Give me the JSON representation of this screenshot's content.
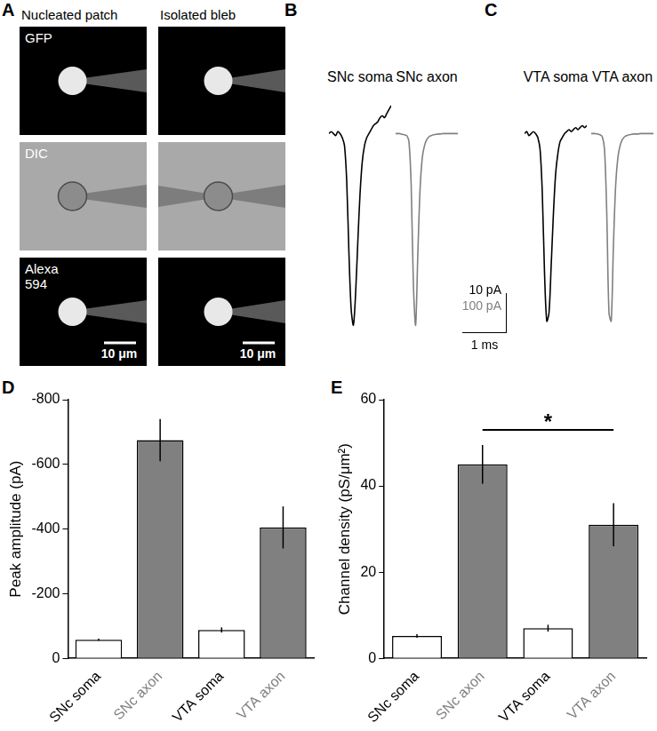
{
  "panel_A": {
    "letter": "A",
    "columns": [
      "Nucleated patch",
      "Isolated bleb"
    ],
    "rows": [
      "GFP",
      "DIC",
      "Alexa 594"
    ],
    "scale_bar_label": "10 μm"
  },
  "chart_data": [
    {
      "panel": "B",
      "type": "line",
      "tick_labels": false,
      "x": [
        0,
        0.05,
        0.1,
        0.15,
        0.2,
        0.25,
        0.3,
        0.35,
        0.4,
        0.45,
        0.5,
        0.55,
        0.6,
        0.65,
        0.7,
        0.75,
        0.8,
        0.85,
        0.9,
        0.95,
        1.0,
        1.05,
        1.1,
        1.15,
        1.2,
        1.25,
        1.3,
        1.35,
        1.4
      ],
      "xlim": [
        0,
        1.4
      ],
      "ylim": [
        -50,
        9
      ],
      "y2lim": [
        -500,
        90
      ],
      "series": [
        {
          "name": "SNc soma",
          "color": "#000000",
          "values": [
            0,
            0.5,
            0,
            -0.5,
            0.5,
            0,
            -1,
            -3,
            -12,
            -30,
            -44,
            -48,
            -40,
            -27,
            -15,
            -7,
            -3,
            -1,
            0,
            1,
            2,
            2.5,
            3,
            4,
            4.5,
            4,
            5,
            6,
            7
          ]
        },
        {
          "name": "SNc axon",
          "color": "#808080",
          "axis": "y2",
          "values": [
            0,
            0,
            0,
            -2,
            -3,
            -5,
            -20,
            -130,
            -380,
            -480,
            -300,
            -140,
            -60,
            -30,
            -15,
            -8,
            -5,
            -3,
            -2,
            -1,
            -1,
            0,
            0,
            0,
            0,
            0,
            0,
            0,
            0
          ]
        }
      ]
    },
    {
      "panel": "C",
      "type": "line",
      "tick_labels": false,
      "x": [
        0,
        0.05,
        0.1,
        0.15,
        0.2,
        0.25,
        0.3,
        0.35,
        0.4,
        0.45,
        0.5,
        0.55,
        0.6,
        0.65,
        0.7,
        0.75,
        0.8,
        0.85,
        0.9,
        0.95,
        1.0,
        1.05,
        1.1,
        1.15,
        1.2,
        1.25,
        1.3,
        1.35,
        1.4
      ],
      "xlim": [
        0,
        1.4
      ],
      "ylim": [
        -50,
        9
      ],
      "y2lim": [
        -500,
        90
      ],
      "series": [
        {
          "name": "VTA soma",
          "color": "#000000",
          "values": [
            0,
            0.5,
            -0.5,
            0,
            0.5,
            0,
            -1,
            -4,
            -15,
            -35,
            -47,
            -45,
            -33,
            -20,
            -10,
            -5,
            -2,
            -1,
            0,
            0.5,
            1,
            0.5,
            1,
            1.5,
            1,
            1.5,
            2,
            1.5,
            2
          ]
        },
        {
          "name": "VTA axon",
          "color": "#808080",
          "axis": "y2",
          "values": [
            0,
            0,
            0,
            -1,
            -3,
            -8,
            -40,
            -200,
            -450,
            -470,
            -280,
            -130,
            -60,
            -30,
            -15,
            -8,
            -5,
            -3,
            -2,
            -1,
            -1,
            -1,
            0,
            0,
            0,
            0,
            0,
            0,
            0
          ]
        }
      ],
      "scale_bar": {
        "x": 1,
        "x_label": "1 ms",
        "y": 10,
        "y_label": "10 pA",
        "y2": 100,
        "y2_label": "100 pA"
      }
    },
    {
      "panel": "D",
      "type": "bar",
      "categories": [
        "SNc soma",
        "SNc axon",
        "VTA soma",
        "VTA axon"
      ],
      "values": [
        -58,
        -675,
        -88,
        -405
      ],
      "errors": [
        3,
        65,
        8,
        65
      ],
      "colors": [
        "#ffffff",
        "#808080",
        "#ffffff",
        "#808080"
      ],
      "y_label": "Peak amplitude (pA)",
      "ylim": [
        0,
        -800
      ],
      "yticks": [
        0,
        -200,
        -400,
        -600,
        -800
      ],
      "grid": false
    },
    {
      "panel": "E",
      "type": "bar",
      "categories": [
        "SNc soma",
        "SNc axon",
        "VTA soma",
        "VTA axon"
      ],
      "values": [
        5.2,
        45,
        7,
        31
      ],
      "errors": [
        0.4,
        4.5,
        0.8,
        5
      ],
      "colors": [
        "#ffffff",
        "#808080",
        "#ffffff",
        "#808080"
      ],
      "y_label": "Channel density (pS/μm²)",
      "ylim": [
        0,
        60
      ],
      "yticks": [
        0,
        20,
        40,
        60
      ],
      "grid": false,
      "significance": {
        "from": "SNc axon",
        "to": "VTA axon",
        "y": 53,
        "label": "*"
      }
    }
  ]
}
